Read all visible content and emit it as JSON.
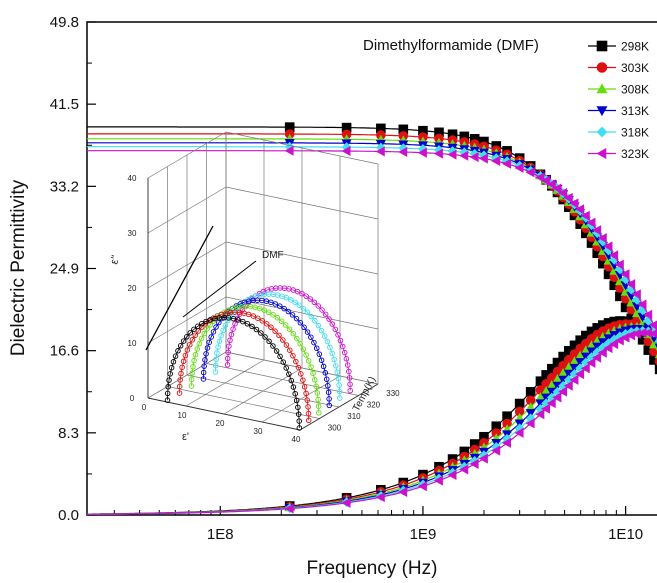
{
  "chart_data": [
    {
      "type": "scatter",
      "title": "",
      "annotation": "Dimethylformamide (DMF)",
      "xlabel": "Frequency (Hz)",
      "ylabel": "Dielectric Permittivity",
      "xscale": "log",
      "xlim": [
        22000000,
        16000000000
      ],
      "ylim": [
        0.0,
        49.8
      ],
      "yticks": [
        "0.0",
        "8.3",
        "16.6",
        "24.9",
        "33.2",
        "41.5",
        "49.8"
      ],
      "xticks": [
        {
          "label": "1E8",
          "value": 100000000
        },
        {
          "label": "1E9",
          "value": 1000000000
        },
        {
          "label": "1E10",
          "value": 10000000000
        }
      ],
      "legend_position": "top-right",
      "colors": {
        "298K": "#000000",
        "303K": "#dd1111",
        "308K": "#66dd11",
        "313K": "#0000cc",
        "318K": "#44ddee",
        "323K": "#cc11cc"
      },
      "markers": {
        "298K": "square",
        "303K": "circle",
        "308K": "triangle-up",
        "313K": "triangle-down",
        "318K": "diamond",
        "323K": "triangle-left"
      },
      "series": [
        {
          "name": "298K",
          "eps_static": 39.2,
          "relaxation_freq_hz": 9500000000,
          "loss_peak": 19.6
        },
        {
          "name": "303K",
          "eps_static": 38.5,
          "relaxation_freq_hz": 10200000000,
          "loss_peak": 19.3
        },
        {
          "name": "308K",
          "eps_static": 38.0,
          "relaxation_freq_hz": 10800000000,
          "loss_peak": 19.0
        },
        {
          "name": "313K",
          "eps_static": 37.6,
          "relaxation_freq_hz": 11400000000,
          "loss_peak": 18.8
        },
        {
          "name": "318K",
          "eps_static": 37.2,
          "relaxation_freq_hz": 12000000000,
          "loss_peak": 18.6
        },
        {
          "name": "323K",
          "eps_static": 36.8,
          "relaxation_freq_hz": 12600000000,
          "loss_peak": 18.4
        }
      ]
    },
    {
      "type": "scatter",
      "title": "",
      "annotation": "DMF",
      "xlabel": "ε'",
      "ylabel": "ε\"",
      "zlabel": "Temp(K)",
      "xticks": [
        "0",
        "10",
        "20",
        "30",
        "40"
      ],
      "yticks": [
        "0",
        "10",
        "20",
        "30",
        "40"
      ],
      "zticks": [
        "300",
        "310",
        "320",
        "330"
      ],
      "series_note": "Cole-Cole semicircles, one per temperature (same colors as main legend)"
    }
  ]
}
